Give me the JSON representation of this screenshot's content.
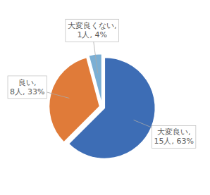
{
  "chart_data": {
    "type": "pie",
    "values": [
      15,
      8,
      1
    ],
    "value_labels": [
      "大変良い,\n15人, 63%",
      "良い,\n8人, 33%",
      "大変良くない,\n1人, 4%"
    ],
    "colors": [
      "#3D6DB5",
      "#E07B39",
      "#7BAFD4"
    ],
    "data_labels": true
  }
}
